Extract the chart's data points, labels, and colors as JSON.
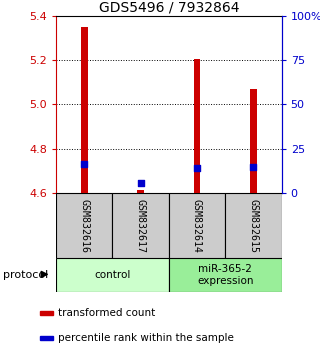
{
  "title": "GDS5496 / 7932864",
  "samples": [
    "GSM832616",
    "GSM832617",
    "GSM832614",
    "GSM832615"
  ],
  "transformed_counts": [
    5.35,
    4.615,
    5.205,
    5.07
  ],
  "percentile_ranks": [
    4.732,
    4.645,
    4.713,
    4.718
  ],
  "bar_bottom": 4.6,
  "ylim": [
    4.6,
    5.4
  ],
  "yticks_left": [
    4.6,
    4.8,
    5.0,
    5.2,
    5.4
  ],
  "yticks_right": [
    0,
    25,
    50,
    75,
    100
  ],
  "yticks_right_labels": [
    "0",
    "25",
    "50",
    "75",
    "100%"
  ],
  "bar_color": "#cc0000",
  "dot_color": "#0000cc",
  "groups": [
    {
      "label": "control",
      "samples": [
        0,
        1
      ],
      "color": "#ccffcc"
    },
    {
      "label": "miR-365-2\nexpression",
      "samples": [
        2,
        3
      ],
      "color": "#99ee99"
    }
  ],
  "sample_box_color": "#cccccc",
  "protocol_label": "protocol",
  "legend_items": [
    {
      "color": "#cc0000",
      "label": "transformed count"
    },
    {
      "color": "#0000cc",
      "label": "percentile rank within the sample"
    }
  ],
  "bar_width": 0.12,
  "dot_size": 18,
  "title_fontsize": 10,
  "tick_fontsize": 8,
  "label_fontsize": 8
}
